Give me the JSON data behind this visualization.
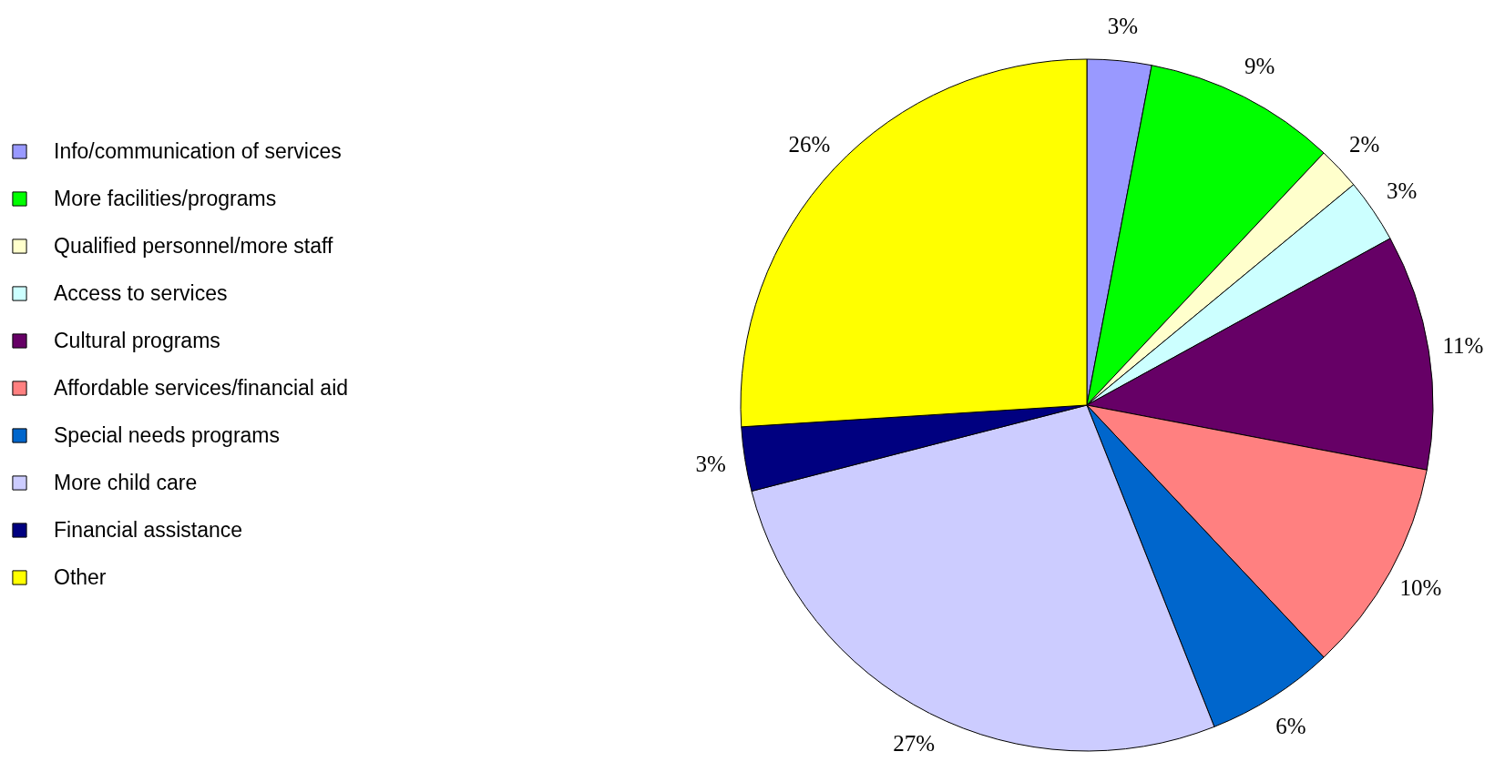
{
  "chart_data": {
    "type": "pie",
    "categories": [
      "Info/communication of services",
      "More facilities/programs",
      "Qualified personnel/more staff",
      "Access to services",
      "Cultural programs",
      "Affordable services/financial aid",
      "Special needs programs",
      "More child care",
      "Financial assistance",
      "Other"
    ],
    "values": [
      3,
      9,
      2,
      3,
      11,
      10,
      6,
      27,
      3,
      26
    ],
    "colors": [
      "#9999ff",
      "#00ff00",
      "#ffffcc",
      "#ccffff",
      "#660066",
      "#ff8080",
      "#0066cc",
      "#ccccff",
      "#000080",
      "#ffff00"
    ],
    "value_labels": [
      "3%",
      "9%",
      "2%",
      "3%",
      "11%",
      "10%",
      "6%",
      "27%",
      "3%",
      "26%"
    ],
    "legend": "left"
  }
}
